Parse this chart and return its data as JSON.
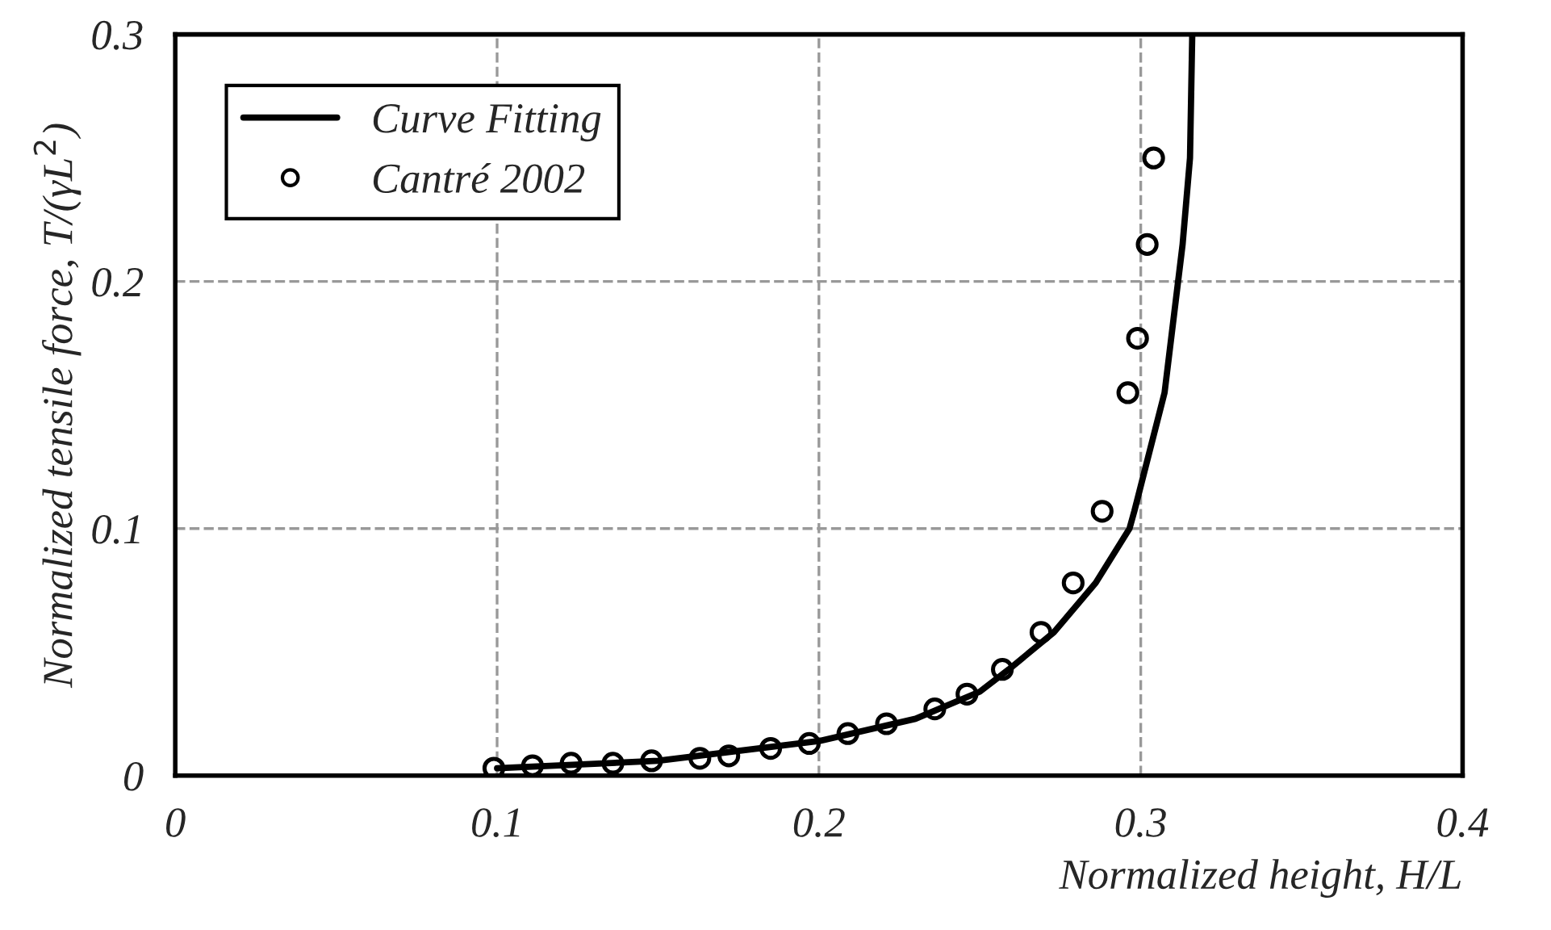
{
  "chart_data": {
    "type": "scatter",
    "xlabel": "Normalized height, H/L",
    "ylabel": "Normalized tensile force, T/(γL$^{2}$)",
    "xlim": [
      0,
      0.4
    ],
    "ylim": [
      0,
      0.3
    ],
    "xticks": [
      0,
      0.1,
      0.2,
      0.3,
      0.4
    ],
    "yticks": [
      0,
      0.1,
      0.2,
      0.3
    ],
    "grid": true,
    "legend": "top left",
    "series": [
      {
        "name": "Curve Fitting",
        "type": "line",
        "color": "#000000",
        "marker": "none",
        "line_style": "solid",
        "x": [
          0.1,
          0.15,
          0.2,
          0.23,
          0.25,
          0.259,
          0.273,
          0.286,
          0.2965,
          0.298,
          0.3074,
          0.313,
          0.3153,
          0.316
        ],
        "values": [
          0.003,
          0.006,
          0.014,
          0.023,
          0.034,
          0.043,
          0.058,
          0.078,
          0.1,
          0.107,
          0.155,
          0.215,
          0.25,
          0.3
        ]
      },
      {
        "name": "Cantré 2002",
        "color": "#000000",
        "marker": "circle",
        "x": [
          0.099,
          0.111,
          0.123,
          0.136,
          0.148,
          0.163,
          0.172,
          0.185,
          0.197,
          0.209,
          0.221,
          0.236,
          0.246,
          0.257,
          0.269,
          0.279,
          0.288,
          0.296,
          0.299,
          0.302,
          0.304
        ],
        "values": [
          0.003,
          0.004,
          0.005,
          0.005,
          0.006,
          0.007,
          0.008,
          0.011,
          0.013,
          0.017,
          0.021,
          0.027,
          0.033,
          0.043,
          0.058,
          0.078,
          0.107,
          0.155,
          0.177,
          0.215,
          0.25
        ]
      }
    ]
  }
}
